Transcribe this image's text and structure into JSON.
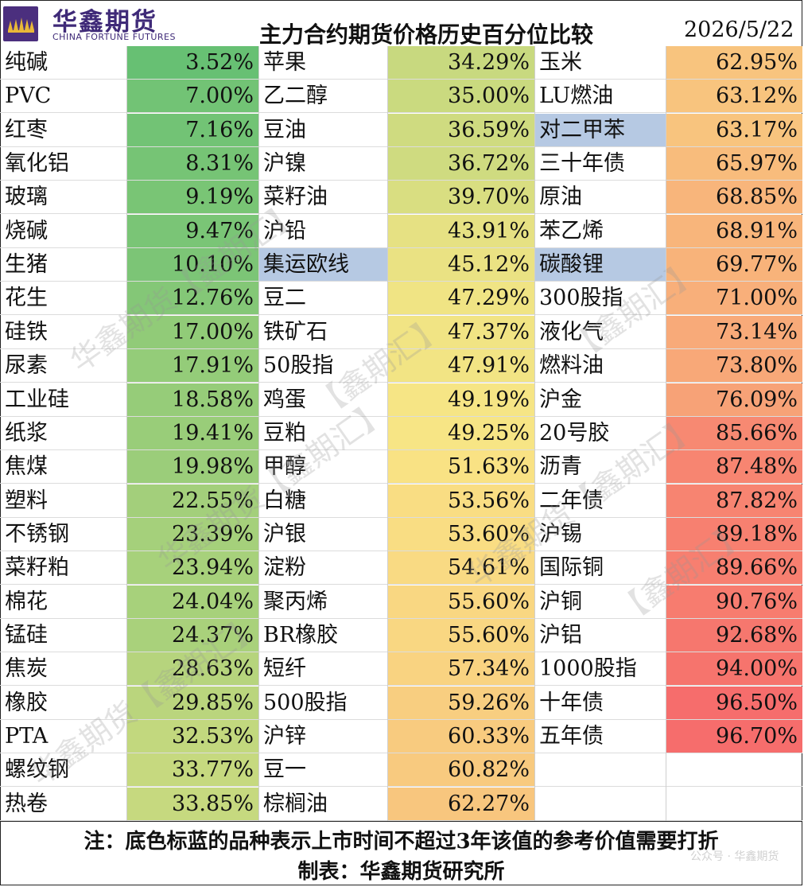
{
  "header": {
    "logo_cn": "华鑫期货",
    "logo_en": "CHINA FORTUNE FUTURES",
    "title": "主力合约期货价格历史百分位比较",
    "date": "2026/5/22"
  },
  "colors": {
    "low": "#5cbd72",
    "mid": "#f9e685",
    "high": "#f6646a",
    "new_listing_highlight": "#b6c9e3"
  },
  "chart_data": {
    "type": "table",
    "columns": [
      {
        "rows": [
          {
            "name": "纯碱",
            "value": "3.52%",
            "pct": 3.52
          },
          {
            "name": "PVC",
            "value": "7.00%",
            "pct": 7.0
          },
          {
            "name": "红枣",
            "value": "7.16%",
            "pct": 7.16
          },
          {
            "name": "氧化铝",
            "value": "8.31%",
            "pct": 8.31
          },
          {
            "name": "玻璃",
            "value": "9.19%",
            "pct": 9.19
          },
          {
            "name": "烧碱",
            "value": "9.47%",
            "pct": 9.47
          },
          {
            "name": "生猪",
            "value": "10.10%",
            "pct": 10.1
          },
          {
            "name": "花生",
            "value": "12.76%",
            "pct": 12.76
          },
          {
            "name": "硅铁",
            "value": "17.00%",
            "pct": 17.0
          },
          {
            "name": "尿素",
            "value": "17.91%",
            "pct": 17.91
          },
          {
            "name": "工业硅",
            "value": "18.58%",
            "pct": 18.58
          },
          {
            "name": "纸浆",
            "value": "19.41%",
            "pct": 19.41
          },
          {
            "name": "焦煤",
            "value": "19.98%",
            "pct": 19.98
          },
          {
            "name": "塑料",
            "value": "22.55%",
            "pct": 22.55
          },
          {
            "name": "不锈钢",
            "value": "23.39%",
            "pct": 23.39
          },
          {
            "name": "菜籽粕",
            "value": "23.94%",
            "pct": 23.94
          },
          {
            "name": "棉花",
            "value": "24.04%",
            "pct": 24.04
          },
          {
            "name": "锰硅",
            "value": "24.37%",
            "pct": 24.37
          },
          {
            "name": "焦炭",
            "value": "28.63%",
            "pct": 28.63
          },
          {
            "name": "橡胶",
            "value": "29.85%",
            "pct": 29.85
          },
          {
            "name": "PTA",
            "value": "32.53%",
            "pct": 32.53
          },
          {
            "name": "螺纹钢",
            "value": "33.77%",
            "pct": 33.77
          },
          {
            "name": "热卷",
            "value": "33.85%",
            "pct": 33.85
          }
        ]
      },
      {
        "rows": [
          {
            "name": "苹果",
            "value": "34.29%",
            "pct": 34.29
          },
          {
            "name": "乙二醇",
            "value": "35.00%",
            "pct": 35.0
          },
          {
            "name": "豆油",
            "value": "36.59%",
            "pct": 36.59
          },
          {
            "name": "沪镍",
            "value": "36.72%",
            "pct": 36.72
          },
          {
            "name": "菜籽油",
            "value": "39.70%",
            "pct": 39.7
          },
          {
            "name": "沪铅",
            "value": "43.91%",
            "pct": 43.91
          },
          {
            "name": "集运欧线",
            "value": "45.12%",
            "pct": 45.12,
            "new": true
          },
          {
            "name": "豆二",
            "value": "47.29%",
            "pct": 47.29
          },
          {
            "name": "铁矿石",
            "value": "47.37%",
            "pct": 47.37
          },
          {
            "name": "50股指",
            "value": "47.91%",
            "pct": 47.91
          },
          {
            "name": "鸡蛋",
            "value": "49.19%",
            "pct": 49.19
          },
          {
            "name": "豆粕",
            "value": "49.25%",
            "pct": 49.25
          },
          {
            "name": "甲醇",
            "value": "51.63%",
            "pct": 51.63
          },
          {
            "name": "白糖",
            "value": "53.56%",
            "pct": 53.56
          },
          {
            "name": "沪银",
            "value": "53.60%",
            "pct": 53.6
          },
          {
            "name": "淀粉",
            "value": "54.61%",
            "pct": 54.61
          },
          {
            "name": "聚丙烯",
            "value": "55.60%",
            "pct": 55.6
          },
          {
            "name": "BR橡胶",
            "value": "55.60%",
            "pct": 55.6
          },
          {
            "name": "短纤",
            "value": "57.34%",
            "pct": 57.34
          },
          {
            "name": "500股指",
            "value": "59.26%",
            "pct": 59.26
          },
          {
            "name": "沪锌",
            "value": "60.33%",
            "pct": 60.33
          },
          {
            "name": "豆一",
            "value": "60.82%",
            "pct": 60.82
          },
          {
            "name": "棕榈油",
            "value": "62.27%",
            "pct": 62.27
          }
        ]
      },
      {
        "rows": [
          {
            "name": "玉米",
            "value": "62.95%",
            "pct": 62.95
          },
          {
            "name": "LU燃油",
            "value": "63.12%",
            "pct": 63.12
          },
          {
            "name": "对二甲苯",
            "value": "63.17%",
            "pct": 63.17,
            "new": true
          },
          {
            "name": "三十年债",
            "value": "65.97%",
            "pct": 65.97
          },
          {
            "name": "原油",
            "value": "68.85%",
            "pct": 68.85
          },
          {
            "name": "苯乙烯",
            "value": "68.91%",
            "pct": 68.91
          },
          {
            "name": "碳酸锂",
            "value": "69.77%",
            "pct": 69.77,
            "new": true
          },
          {
            "name": "300股指",
            "value": "71.00%",
            "pct": 71.0
          },
          {
            "name": "液化气",
            "value": "73.14%",
            "pct": 73.14
          },
          {
            "name": "燃料油",
            "value": "73.80%",
            "pct": 73.8
          },
          {
            "name": "沪金",
            "value": "76.09%",
            "pct": 76.09
          },
          {
            "name": "20号胶",
            "value": "85.66%",
            "pct": 85.66
          },
          {
            "name": "沥青",
            "value": "87.48%",
            "pct": 87.48
          },
          {
            "name": "二年债",
            "value": "87.82%",
            "pct": 87.82
          },
          {
            "name": "沪锡",
            "value": "89.18%",
            "pct": 89.18
          },
          {
            "name": "国际铜",
            "value": "89.66%",
            "pct": 89.66
          },
          {
            "name": "沪铜",
            "value": "90.76%",
            "pct": 90.76
          },
          {
            "name": "沪铝",
            "value": "92.68%",
            "pct": 92.68
          },
          {
            "name": "1000股指",
            "value": "94.00%",
            "pct": 94.0
          },
          {
            "name": "十年债",
            "value": "96.50%",
            "pct": 96.5
          },
          {
            "name": "五年债",
            "value": "96.70%",
            "pct": 96.7
          }
        ]
      }
    ]
  },
  "footer": {
    "note": "注：底色标蓝的品种表示上市时间不超过3年该值的参考价值需要打折",
    "maker": "制表：华鑫期货研究所"
  },
  "watermarks": {
    "text_a": "华鑫期货【鑫期汇】",
    "text_b": "【鑫期汇】",
    "corner": "公众号 · 华鑫期货"
  }
}
